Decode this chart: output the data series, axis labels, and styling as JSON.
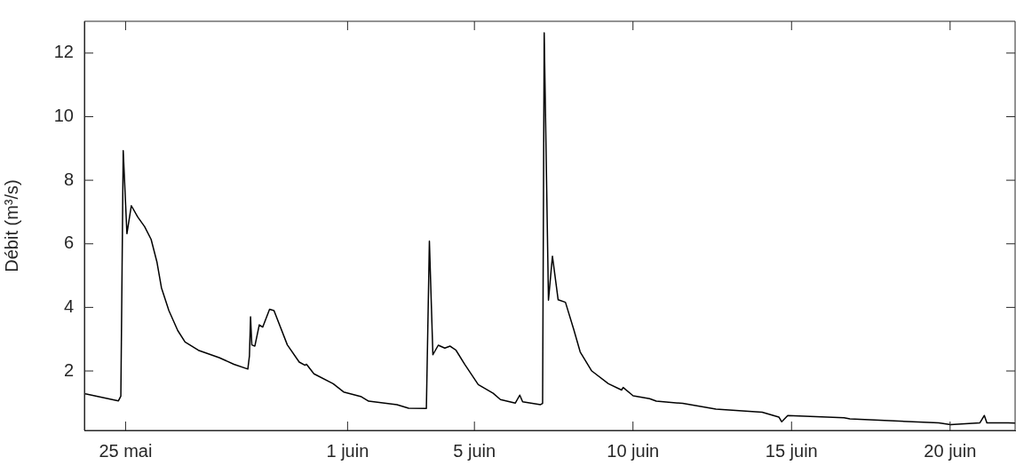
{
  "chart_data": {
    "type": "line",
    "ylabel": "Débit (m³/s)",
    "color": "#000000",
    "marker": "none",
    "line_style": "solid",
    "grid": false,
    "legend": false,
    "x": [
      "--05-23T17:30",
      "--05-24T18:35",
      "--05-24T20:24",
      "--05-24T22:12",
      "--05-25T01:00",
      "--05-25T04:20",
      "--05-25T09:14",
      "--05-25T14:24",
      "--05-25T19:19",
      "--05-25T23:46",
      "--05-26T03:07",
      "--05-26T08:46",
      "--05-26T15:29",
      "--05-26T21:00",
      "--05-27T07:05",
      "--05-27T22:48",
      "--05-28T09:58",
      "--05-28T20:31",
      "--05-28T21:43",
      "--05-28T22:34",
      "--05-28T23:31",
      "--05-29T01:48",
      "--05-29T05:10",
      "--05-29T07:48",
      "--05-29T12:58",
      "--05-29T16:19",
      "--05-30T02:24",
      "--05-30T11:24",
      "--05-30T15:50",
      "--05-30T16:55",
      "--05-30T22:34",
      "--05-31T13:05",
      "--05-31T21:00",
      "--06-01T10:26",
      "--06-01T15:58",
      "--06-02T13:19",
      "--06-02T22:12",
      "--06-03T11:38",
      "--06-03T13:55",
      "--06-03T16:34",
      "--06-03T20:38",
      "--06-04T01:34",
      "--06-04T05:38",
      "--06-04T10:05",
      "--06-04T16:48",
      "--06-05T02:53",
      "--06-05T14:10",
      "--06-05T19:41",
      "--06-06T06:58",
      "--06-06T10:19",
      "--06-06T12:29",
      "--06-07T02:02",
      "--06-07T03:36",
      "--06-07T04:48",
      "--06-07T08:02",
      "--06-07T11:02",
      "--06-07T15:22",
      "--06-07T20:53",
      "--06-08T03:07",
      "--06-08T08:02",
      "--06-08T16:48",
      "--06-09T05:24",
      "--06-09T15:22",
      "--06-09T16:34",
      "--06-10T00:07",
      "--06-10T12:36",
      "--06-10T17:38",
      "--06-11T13:41",
      "--06-12T14:46",
      "--06-14T01:48",
      "--06-14T14:24",
      "--06-14T16:34",
      "--06-14T21:07",
      "--06-16T15:43",
      "--06-16T20:10",
      "--06-19T15:22",
      "--06-20T00:22",
      "--06-20T22:34",
      "--06-21T01:55",
      "--06-21T03:50",
      "--06-21T20:02",
      "--06-22T01:12"
    ],
    "values": [
      1.28,
      1.06,
      1.21,
      8.93,
      6.32,
      7.2,
      6.84,
      6.54,
      6.14,
      5.42,
      4.62,
      3.9,
      3.27,
      2.91,
      2.65,
      2.42,
      2.21,
      2.06,
      2.47,
      3.7,
      2.82,
      2.78,
      3.45,
      3.38,
      3.94,
      3.9,
      2.82,
      2.28,
      2.18,
      2.21,
      1.91,
      1.6,
      1.34,
      1.19,
      1.05,
      0.94,
      0.83,
      0.82,
      6.08,
      2.51,
      2.81,
      2.72,
      2.78,
      2.65,
      2.2,
      1.57,
      1.3,
      1.1,
      0.99,
      1.24,
      1.03,
      0.94,
      0.98,
      12.64,
      4.23,
      5.61,
      4.24,
      4.16,
      3.31,
      2.6,
      2.0,
      1.6,
      1.4,
      1.48,
      1.22,
      1.13,
      1.05,
      0.98,
      0.8,
      0.7,
      0.55,
      0.4,
      0.6,
      0.53,
      0.49,
      0.37,
      0.31,
      0.37,
      0.6,
      0.37,
      0.37,
      0.36
    ],
    "xlim": [
      "--05-23T16:48",
      "--06-22T01:12"
    ],
    "ylim": [
      0.13,
      13
    ],
    "xticks": [
      {
        "value": "--05-25",
        "label": "25 mai"
      },
      {
        "value": "--06-01",
        "label": "1 juin"
      },
      {
        "value": "--06-05",
        "label": "5 juin"
      },
      {
        "value": "--06-10",
        "label": "10 juin"
      },
      {
        "value": "--06-15",
        "label": "15 juin"
      },
      {
        "value": "--06-20",
        "label": "20 juin"
      }
    ],
    "yticks": [
      2,
      4,
      6,
      8,
      10,
      12
    ]
  }
}
